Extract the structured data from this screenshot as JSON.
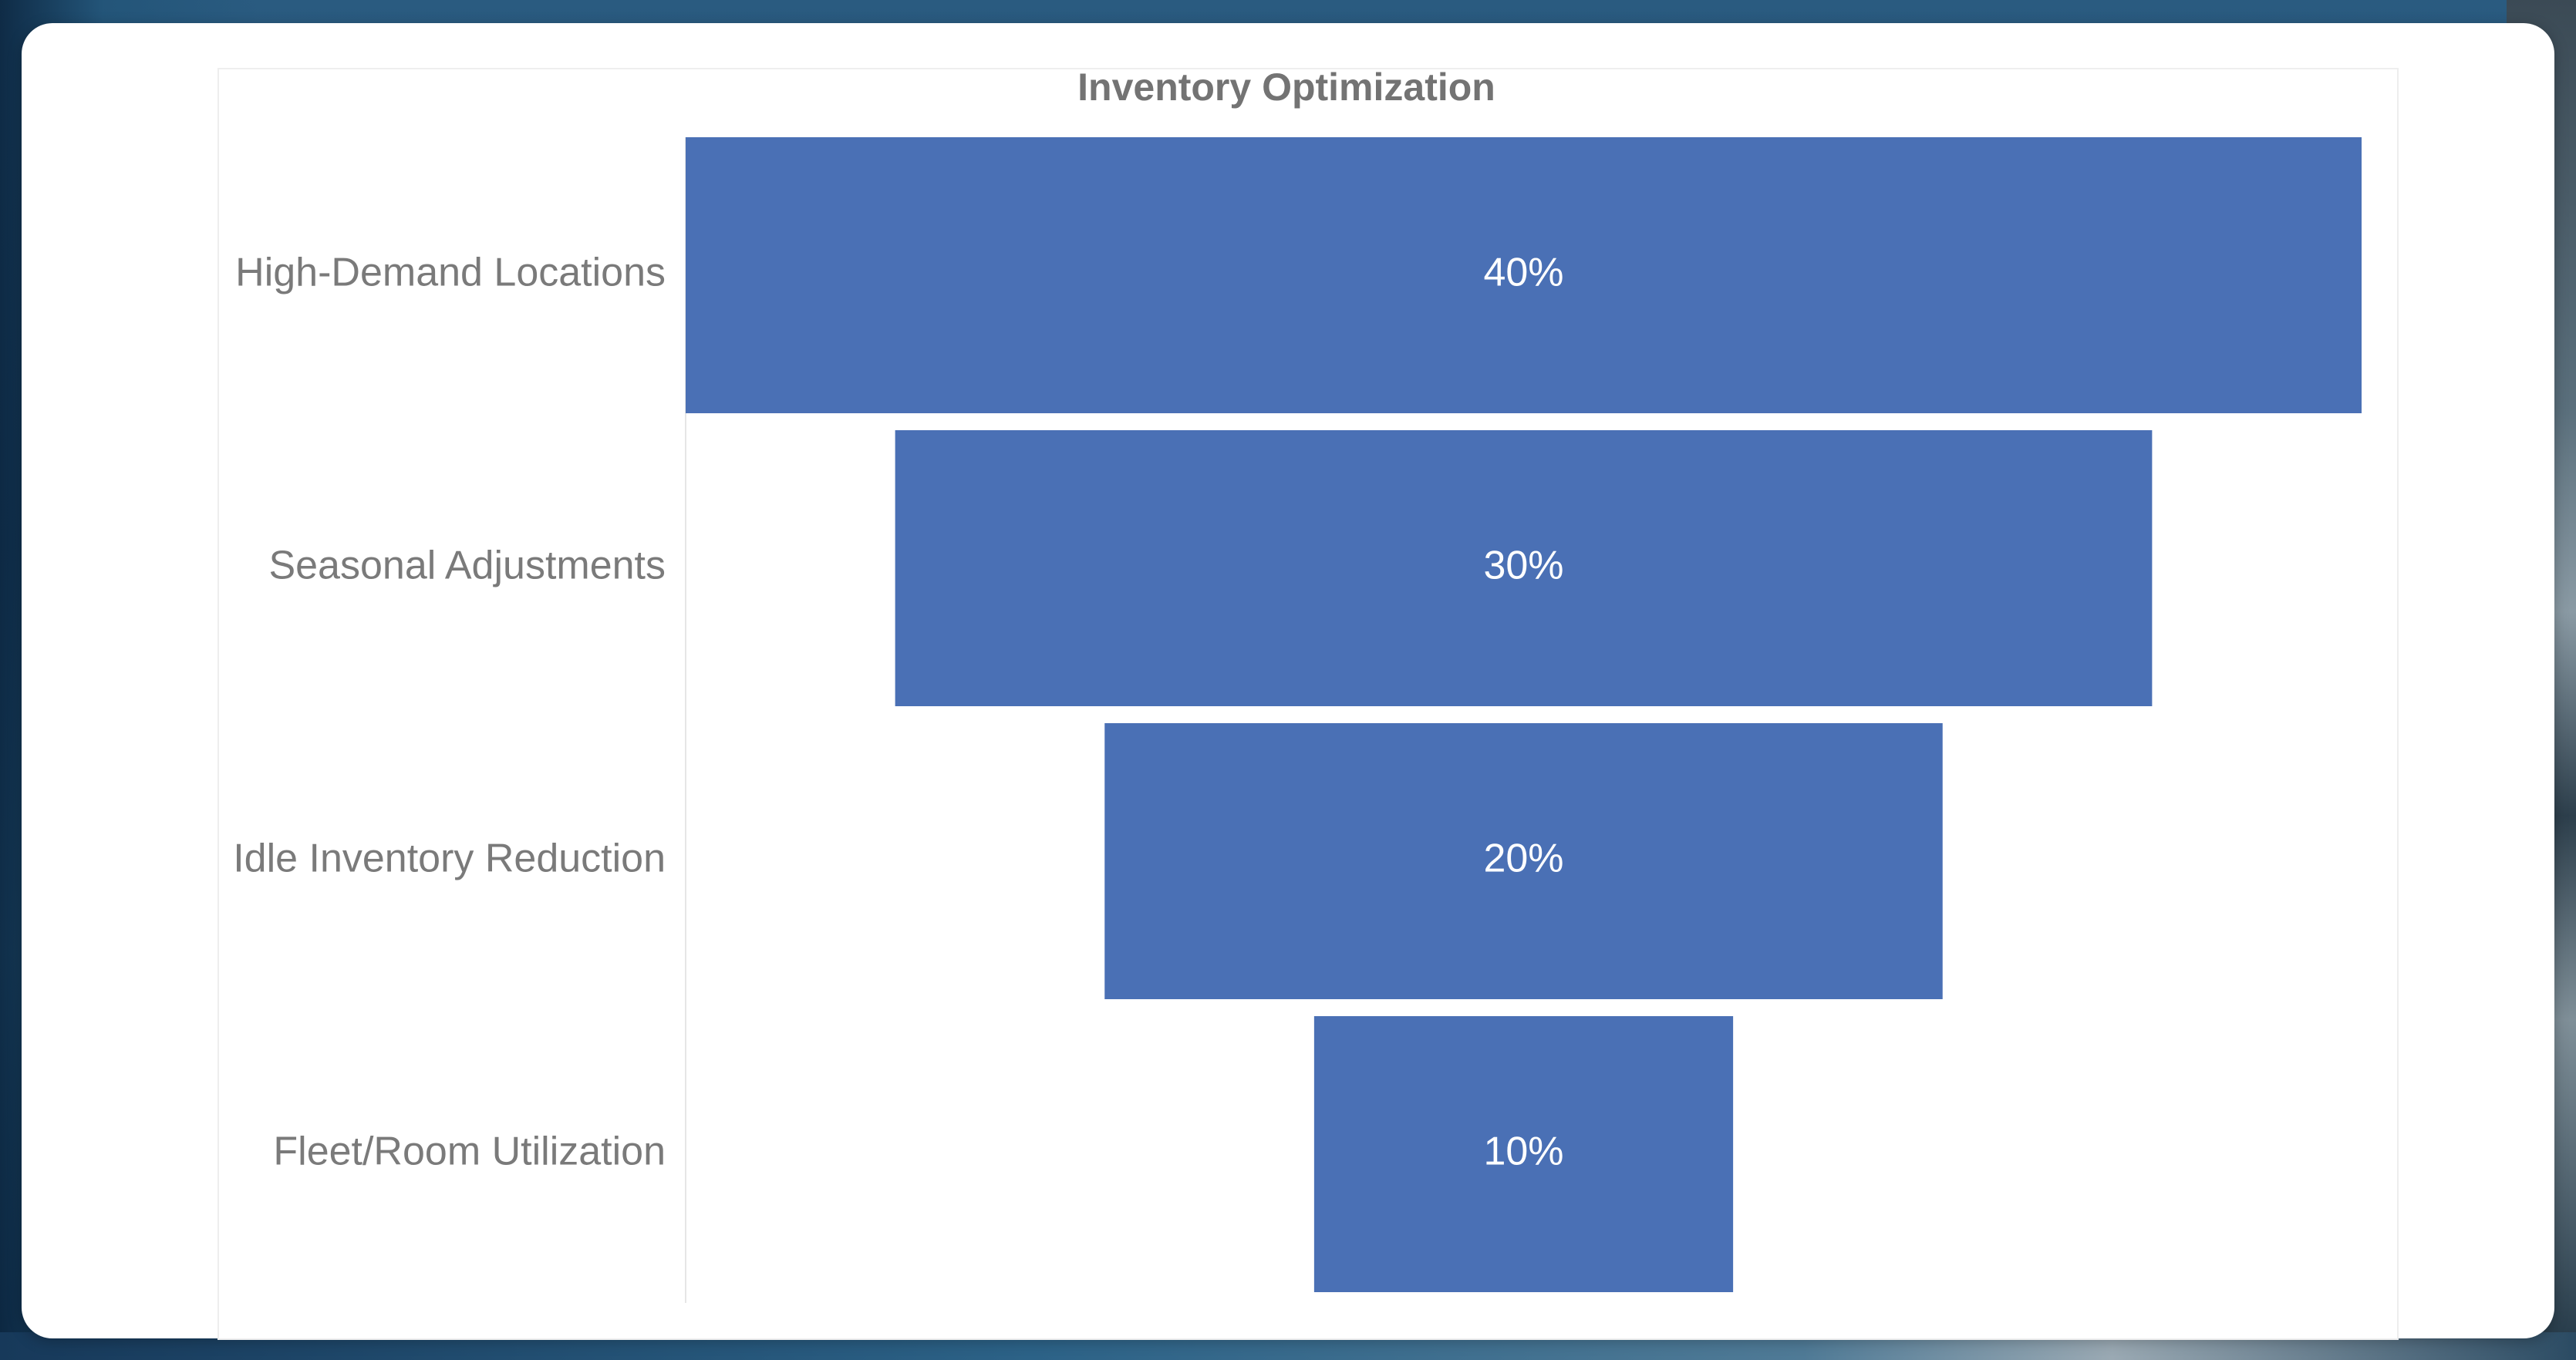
{
  "chart_data": {
    "type": "bar",
    "subtype": "funnel",
    "title": "Inventory Optimization",
    "categories": [
      "High-Demand Locations",
      "Seasonal Adjustments",
      "Idle Inventory Reduction",
      "Fleet/Room Utilization"
    ],
    "values": [
      40,
      30,
      20,
      10
    ],
    "value_labels": [
      "40%",
      "30%",
      "20%",
      "10%"
    ],
    "value_unit": "%",
    "xlabel": "",
    "ylabel": "",
    "grid": false,
    "legend": "none",
    "bar_color": "#4a70b5"
  }
}
